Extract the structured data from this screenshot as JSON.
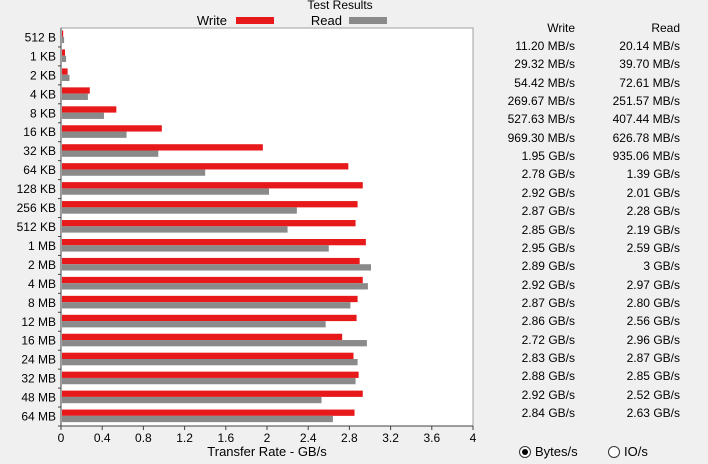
{
  "chart_data": {
    "type": "bar",
    "title": "Test Results",
    "xlabel": "Transfer Rate - GB/s",
    "xlim": [
      0,
      4
    ],
    "x_ticks": [
      "0",
      "0.4",
      "0.8",
      "1.2",
      "1.6",
      "2",
      "2.4",
      "2.8",
      "3.2",
      "3.6",
      "4"
    ],
    "legend_position": "top",
    "grid": false,
    "categories": [
      "512 B",
      "1 KB",
      "2 KB",
      "4 KB",
      "8 KB",
      "16 KB",
      "32 KB",
      "64 KB",
      "128 KB",
      "256 KB",
      "512 KB",
      "1 MB",
      "2 MB",
      "4 MB",
      "8 MB",
      "12 MB",
      "16 MB",
      "24 MB",
      "32 MB",
      "48 MB",
      "64 MB"
    ],
    "series": [
      {
        "name": "Write",
        "color": "#e8191b",
        "values": [
          0.0112,
          0.02932,
          0.05442,
          0.26967,
          0.52763,
          0.9693,
          1.95,
          2.78,
          2.92,
          2.87,
          2.85,
          2.95,
          2.89,
          2.92,
          2.87,
          2.86,
          2.72,
          2.83,
          2.88,
          2.92,
          2.84
        ]
      },
      {
        "name": "Read",
        "color": "#8a8a8a",
        "values": [
          0.02014,
          0.0397,
          0.07261,
          0.25157,
          0.40744,
          0.62678,
          0.93506,
          1.39,
          2.01,
          2.28,
          2.19,
          2.59,
          3.0,
          2.97,
          2.8,
          2.56,
          2.96,
          2.87,
          2.85,
          2.52,
          2.63
        ]
      }
    ]
  },
  "table": {
    "write_header": "Write",
    "read_header": "Read",
    "write_values": [
      "11.20 MB/s",
      "29.32 MB/s",
      "54.42 MB/s",
      "269.67 MB/s",
      "527.63 MB/s",
      "969.30 MB/s",
      "1.95 GB/s",
      "2.78 GB/s",
      "2.92 GB/s",
      "2.87 GB/s",
      "2.85 GB/s",
      "2.95 GB/s",
      "2.89 GB/s",
      "2.92 GB/s",
      "2.87 GB/s",
      "2.86 GB/s",
      "2.72 GB/s",
      "2.83 GB/s",
      "2.88 GB/s",
      "2.92 GB/s",
      "2.84 GB/s"
    ],
    "read_values": [
      "20.14 MB/s",
      "39.70 MB/s",
      "72.61 MB/s",
      "251.57 MB/s",
      "407.44 MB/s",
      "626.78 MB/s",
      "935.06 MB/s",
      "1.39 GB/s",
      "2.01 GB/s",
      "2.28 GB/s",
      "2.19 GB/s",
      "2.59 GB/s",
      "3 GB/s",
      "2.97 GB/s",
      "2.80 GB/s",
      "2.56 GB/s",
      "2.96 GB/s",
      "2.87 GB/s",
      "2.85 GB/s",
      "2.52 GB/s",
      "2.63 GB/s"
    ]
  },
  "units_toggle": {
    "options": [
      "Bytes/s",
      "IO/s"
    ],
    "selected": "Bytes/s"
  }
}
